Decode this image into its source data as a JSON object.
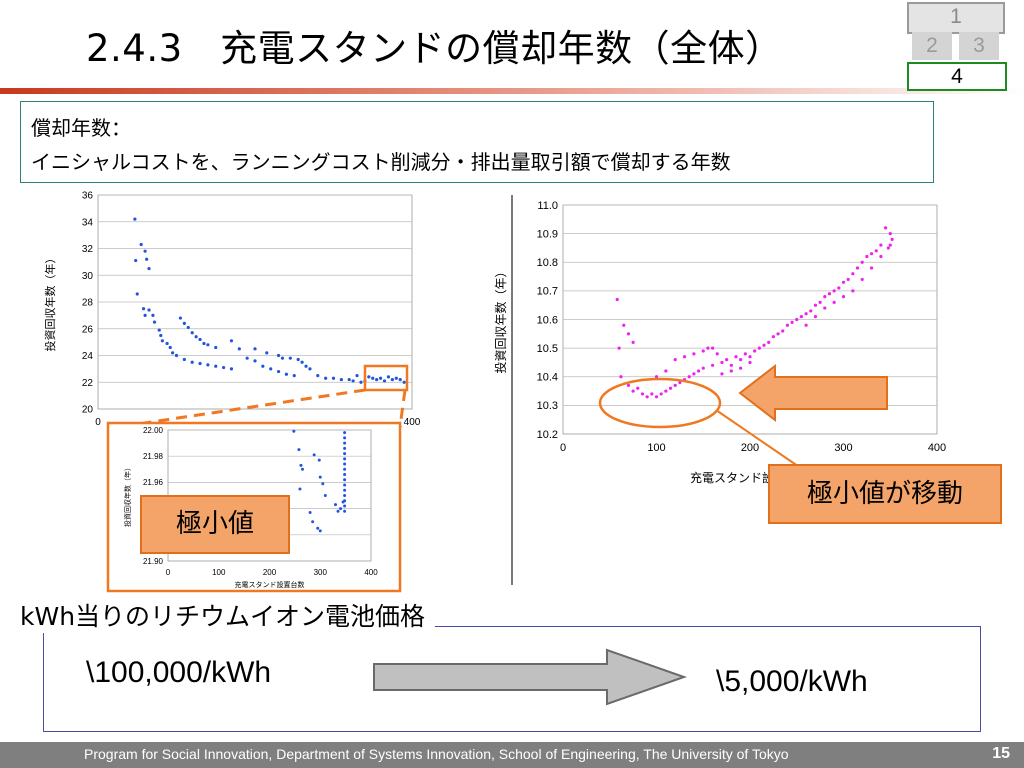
{
  "header": {
    "title": "2.4.3　充電スタンドの償却年数（全体）",
    "nav": [
      "1",
      "2",
      "3",
      "4"
    ]
  },
  "definition": {
    "heading": "償却年数：",
    "body": "イニシャルコストを、ランニングコスト削減分・排出量取引額で償却する年数"
  },
  "callouts": {
    "left": "極小値",
    "right": "極小値が移動"
  },
  "colors": {
    "accent_red": "#c8391e",
    "left_series": "#2255dd",
    "right_series": "#ee22ee",
    "highlight_orange": "#f07820",
    "nav_active": "#1f8a1f"
  },
  "battery": {
    "heading": "kWh当りのリチウムイオン電池価格",
    "from_price": "\\100,000/kWh",
    "to_price": "\\5,000/kWh"
  },
  "footer": {
    "text": "Program for Social Innovation, Department of Systems Innovation, School of Engineering, The University of Tokyo",
    "page": "15"
  },
  "chart_data": [
    {
      "type": "scatter",
      "title": "",
      "ylabel": "投資回収年数（年）",
      "xlabel": "",
      "xlim": [
        0,
        400
      ],
      "ylim": [
        20,
        36
      ],
      "xticks": [
        "0",
        "400"
      ],
      "yticks": [
        "20",
        "22",
        "24",
        "26",
        "28",
        "30",
        "32",
        "34",
        "36"
      ],
      "grid": true,
      "series": [
        {
          "points": [
            [
              47,
              34.2
            ],
            [
              48,
              31.1
            ],
            [
              55,
              32.3
            ],
            [
              60,
              31.8
            ],
            [
              62,
              31.2
            ],
            [
              65,
              30.5
            ],
            [
              50,
              28.6
            ],
            [
              58,
              27.5
            ],
            [
              60,
              27.0
            ],
            [
              65,
              27.4
            ],
            [
              70,
              27.0
            ],
            [
              72,
              26.5
            ],
            [
              78,
              25.9
            ],
            [
              80,
              25.5
            ],
            [
              82,
              25.1
            ],
            [
              88,
              24.9
            ],
            [
              92,
              24.6
            ],
            [
              95,
              24.2
            ],
            [
              100,
              24.0
            ],
            [
              105,
              26.8
            ],
            [
              110,
              26.4
            ],
            [
              115,
              26.1
            ],
            [
              120,
              25.7
            ],
            [
              125,
              25.4
            ],
            [
              130,
              25.2
            ],
            [
              135,
              24.9
            ],
            [
              110,
              23.7
            ],
            [
              120,
              23.5
            ],
            [
              130,
              23.4
            ],
            [
              140,
              23.3
            ],
            [
              150,
              23.2
            ],
            [
              160,
              23.1
            ],
            [
              170,
              23.0
            ],
            [
              140,
              24.8
            ],
            [
              150,
              24.6
            ],
            [
              170,
              25.1
            ],
            [
              180,
              24.5
            ],
            [
              190,
              23.8
            ],
            [
              200,
              23.6
            ],
            [
              210,
              23.2
            ],
            [
              220,
              23.0
            ],
            [
              230,
              22.8
            ],
            [
              240,
              22.6
            ],
            [
              250,
              22.5
            ],
            [
              200,
              24.5
            ],
            [
              215,
              24.2
            ],
            [
              230,
              24.0
            ],
            [
              235,
              23.8
            ],
            [
              245,
              23.8
            ],
            [
              255,
              23.7
            ],
            [
              260,
              23.5
            ],
            [
              265,
              23.2
            ],
            [
              270,
              23.0
            ],
            [
              280,
              22.5
            ],
            [
              290,
              22.3
            ],
            [
              300,
              22.3
            ],
            [
              310,
              22.2
            ],
            [
              320,
              22.2
            ],
            [
              325,
              22.1
            ],
            [
              330,
              22.5
            ],
            [
              335,
              22.0
            ],
            [
              340,
              22.1
            ],
            [
              345,
              22.4
            ],
            [
              350,
              22.3
            ],
            [
              355,
              22.2
            ],
            [
              360,
              22.3
            ],
            [
              365,
              22.1
            ],
            [
              370,
              22.4
            ],
            [
              375,
              22.2
            ],
            [
              380,
              22.3
            ],
            [
              385,
              22.2
            ],
            [
              390,
              22.0
            ]
          ]
        }
      ],
      "inset": {
        "ylabel": "投資回収年数（年）",
        "xlabel": "充電スタンド設置台数",
        "xlim": [
          0,
          400
        ],
        "ylim": [
          21.9,
          22.0
        ],
        "xticks": [
          "0",
          "100",
          "200",
          "300",
          "400"
        ],
        "yticks": [
          "21.90",
          "21.92",
          "21.94",
          "21.96",
          "21.98",
          "22.00"
        ],
        "points": [
          [
            248,
            21.999
          ],
          [
            258,
            21.985
          ],
          [
            262,
            21.973
          ],
          [
            265,
            21.97
          ],
          [
            260,
            21.955
          ],
          [
            288,
            21.981
          ],
          [
            298,
            21.977
          ],
          [
            300,
            21.964
          ],
          [
            305,
            21.959
          ],
          [
            310,
            21.95
          ],
          [
            280,
            21.937
          ],
          [
            285,
            21.93
          ],
          [
            295,
            21.925
          ],
          [
            300,
            21.923
          ],
          [
            330,
            21.943
          ],
          [
            340,
            21.94
          ],
          [
            335,
            21.938
          ],
          [
            345,
            21.945
          ],
          [
            348,
            21.998
          ],
          [
            348,
            21.994
          ],
          [
            348,
            21.99
          ],
          [
            348,
            21.986
          ],
          [
            348,
            21.982
          ],
          [
            348,
            21.978
          ],
          [
            348,
            21.974
          ],
          [
            348,
            21.97
          ],
          [
            348,
            21.966
          ],
          [
            348,
            21.962
          ],
          [
            348,
            21.958
          ],
          [
            348,
            21.954
          ],
          [
            348,
            21.95
          ],
          [
            348,
            21.946
          ],
          [
            348,
            21.942
          ],
          [
            348,
            21.938
          ]
        ]
      }
    },
    {
      "type": "scatter",
      "title": "",
      "ylabel": "投資回収年数（年）",
      "xlabel": "充電スタンド設置機数",
      "xlim": [
        0,
        400
      ],
      "ylim": [
        10.2,
        11.0
      ],
      "xticks": [
        "0",
        "100",
        "200",
        "300",
        "400"
      ],
      "yticks": [
        "10.2",
        "10.3",
        "10.4",
        "10.5",
        "10.6",
        "10.7",
        "10.8",
        "10.9",
        "11.0"
      ],
      "grid": true,
      "series": [
        {
          "points": [
            [
              58,
              10.67
            ],
            [
              65,
              10.58
            ],
            [
              70,
              10.55
            ],
            [
              60,
              10.5
            ],
            [
              75,
              10.52
            ],
            [
              62,
              10.4
            ],
            [
              70,
              10.37
            ],
            [
              75,
              10.35
            ],
            [
              80,
              10.36
            ],
            [
              85,
              10.34
            ],
            [
              90,
              10.33
            ],
            [
              95,
              10.34
            ],
            [
              100,
              10.33
            ],
            [
              105,
              10.34
            ],
            [
              110,
              10.35
            ],
            [
              115,
              10.36
            ],
            [
              120,
              10.37
            ],
            [
              125,
              10.38
            ],
            [
              130,
              10.39
            ],
            [
              135,
              10.4
            ],
            [
              140,
              10.41
            ],
            [
              145,
              10.42
            ],
            [
              150,
              10.43
            ],
            [
              120,
              10.46
            ],
            [
              130,
              10.47
            ],
            [
              140,
              10.48
            ],
            [
              150,
              10.49
            ],
            [
              160,
              10.5
            ],
            [
              170,
              10.45
            ],
            [
              180,
              10.44
            ],
            [
              190,
              10.46
            ],
            [
              200,
              10.47
            ],
            [
              210,
              10.5
            ],
            [
              220,
              10.52
            ],
            [
              230,
              10.55
            ],
            [
              240,
              10.58
            ],
            [
              250,
              10.6
            ],
            [
              260,
              10.62
            ],
            [
              270,
              10.65
            ],
            [
              280,
              10.68
            ],
            [
              290,
              10.7
            ],
            [
              300,
              10.73
            ],
            [
              310,
              10.76
            ],
            [
              320,
              10.8
            ],
            [
              330,
              10.83
            ],
            [
              340,
              10.86
            ],
            [
              350,
              10.9
            ],
            [
              345,
              10.92
            ],
            [
              352,
              10.88
            ],
            [
              348,
              10.85
            ],
            [
              335,
              10.84
            ],
            [
              325,
              10.82
            ],
            [
              315,
              10.78
            ],
            [
              305,
              10.74
            ],
            [
              295,
              10.71
            ],
            [
              285,
              10.69
            ],
            [
              275,
              10.66
            ],
            [
              265,
              10.63
            ],
            [
              255,
              10.61
            ],
            [
              245,
              10.59
            ],
            [
              235,
              10.56
            ],
            [
              225,
              10.54
            ],
            [
              215,
              10.51
            ],
            [
              205,
              10.49
            ],
            [
              195,
              10.48
            ],
            [
              185,
              10.47
            ],
            [
              175,
              10.46
            ],
            [
              165,
              10.48
            ],
            [
              155,
              10.5
            ],
            [
              100,
              10.4
            ],
            [
              110,
              10.42
            ],
            [
              160,
              10.44
            ],
            [
              170,
              10.41
            ],
            [
              180,
              10.42
            ],
            [
              190,
              10.43
            ],
            [
              200,
              10.45
            ],
            [
              260,
              10.58
            ],
            [
              270,
              10.61
            ],
            [
              280,
              10.64
            ],
            [
              290,
              10.66
            ],
            [
              300,
              10.68
            ],
            [
              310,
              10.7
            ],
            [
              320,
              10.74
            ],
            [
              330,
              10.78
            ],
            [
              340,
              10.82
            ],
            [
              350,
              10.86
            ]
          ]
        }
      ]
    }
  ]
}
